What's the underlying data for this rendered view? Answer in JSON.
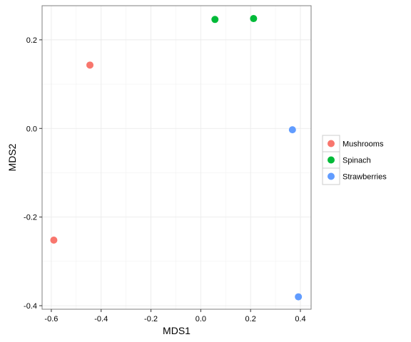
{
  "chart_data": {
    "type": "scatter",
    "title": "",
    "xlabel": "MDS1",
    "ylabel": "MDS2",
    "xlim": [
      -0.637,
      0.443
    ],
    "ylim": [
      -0.408,
      0.277
    ],
    "xticks": [
      -0.6,
      -0.4,
      -0.2,
      0.0,
      0.2,
      0.4
    ],
    "xtick_labels": [
      "-0.6",
      "-0.4",
      "-0.2",
      "0.0",
      "0.2",
      "0.4"
    ],
    "yticks": [
      -0.4,
      -0.2,
      0.0,
      0.2
    ],
    "ytick_labels": [
      "-0.4",
      "-0.2",
      "0.0",
      "0.2"
    ],
    "grid": true,
    "legend_position": "right",
    "series": [
      {
        "name": "Mushrooms",
        "color": "#F8766D",
        "points": [
          {
            "x": -0.445,
            "y": 0.143
          },
          {
            "x": -0.59,
            "y": -0.252
          }
        ]
      },
      {
        "name": "Spinach",
        "color": "#00BA38",
        "points": [
          {
            "x": 0.057,
            "y": 0.246
          },
          {
            "x": 0.212,
            "y": 0.248
          }
        ]
      },
      {
        "name": "Strawberries",
        "color": "#619CFF",
        "points": [
          {
            "x": 0.368,
            "y": -0.003
          },
          {
            "x": 0.392,
            "y": -0.38
          }
        ]
      }
    ]
  }
}
